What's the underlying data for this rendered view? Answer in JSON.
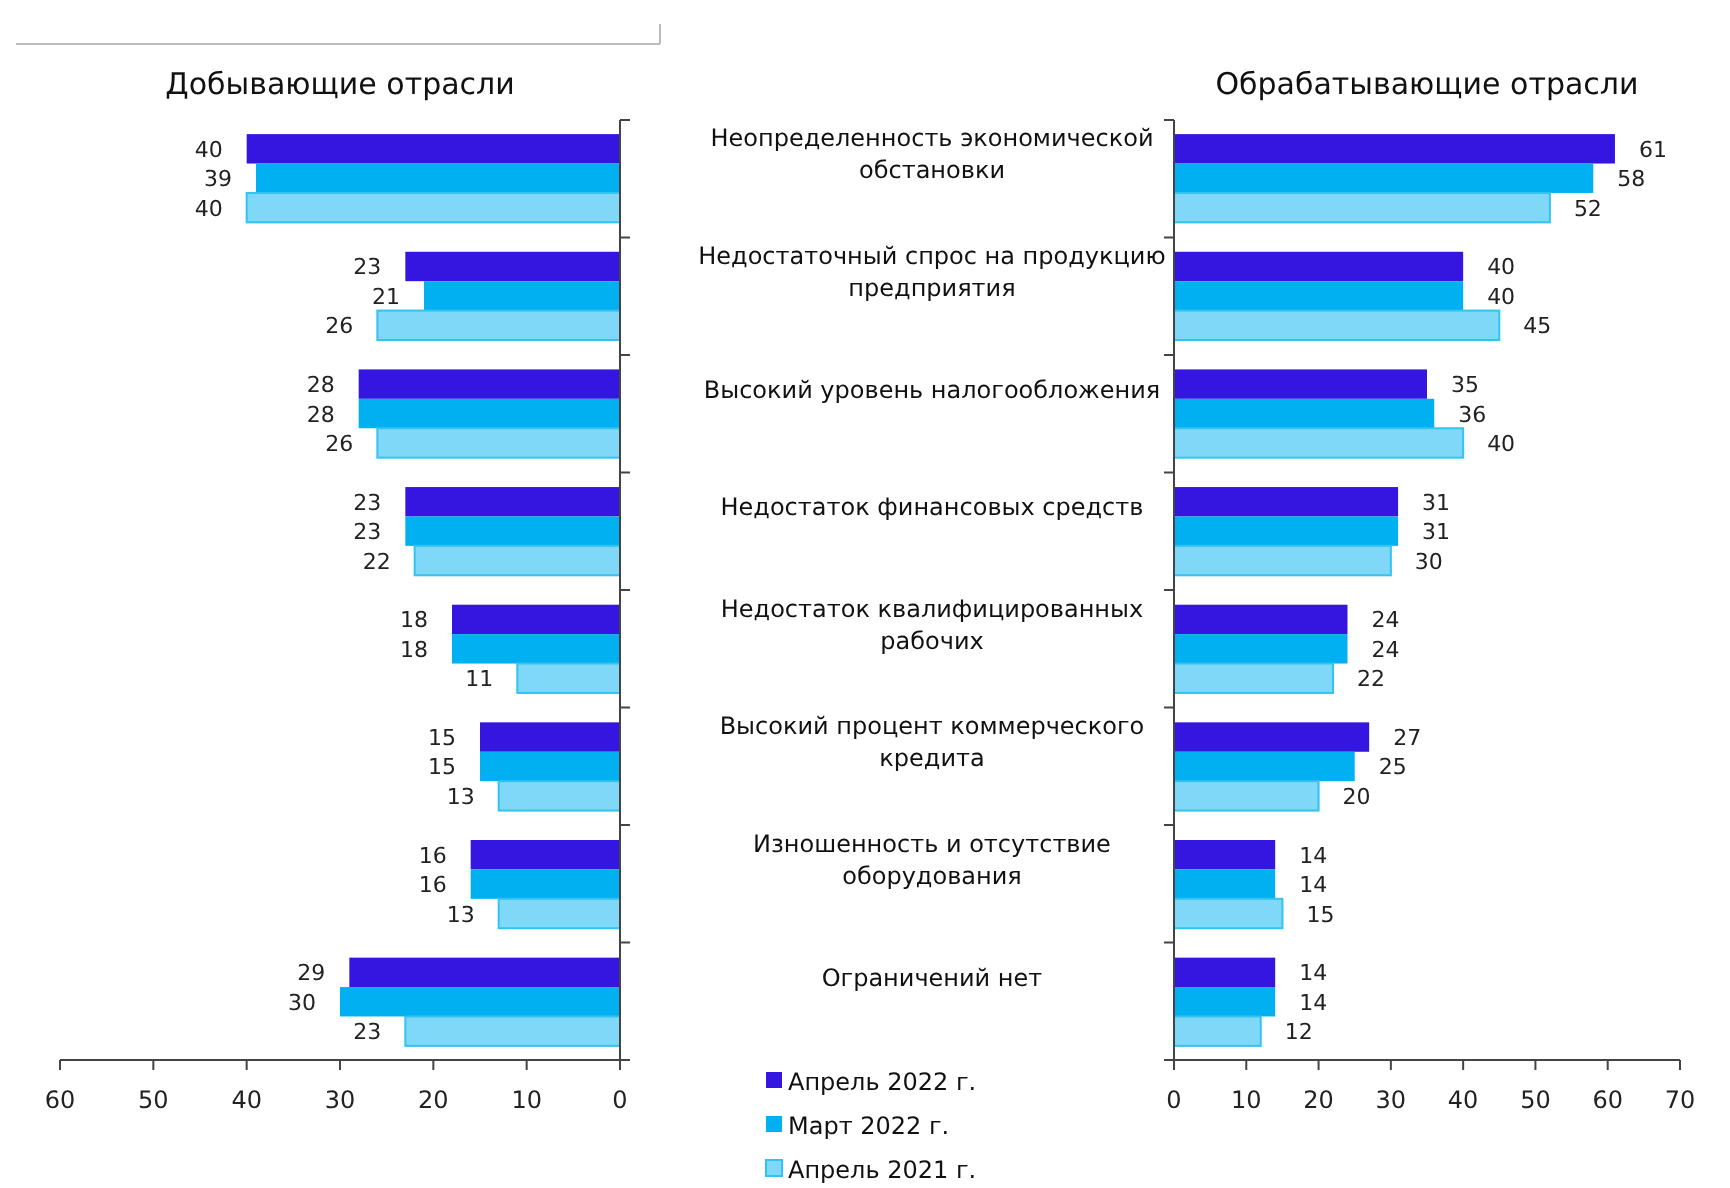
{
  "chart_data": [
    {
      "type": "bar",
      "orientation": "horizontal",
      "title": "Добывающие отрасли",
      "categories": [
        null,
        null,
        null,
        null,
        null,
        null,
        null,
        null
      ],
      "xlim": [
        60,
        0
      ],
      "xticks": [
        60,
        50,
        40,
        30,
        20,
        10,
        0
      ],
      "data_labels": true,
      "tick_labels": "x",
      "legend": false,
      "series": [
        {
          "color": "#3416e0",
          "values": [
            40,
            23,
            28,
            23,
            18,
            15,
            16,
            29
          ]
        },
        {
          "color": "#00b0f0",
          "values": [
            39,
            21,
            28,
            23,
            18,
            15,
            16,
            30
          ]
        },
        {
          "color": "#7fd8f7",
          "values": [
            40,
            26,
            26,
            22,
            11,
            13,
            13,
            23
          ]
        }
      ]
    },
    {
      "type": "bar",
      "orientation": "horizontal",
      "title": "Обрабатывающие отрасли",
      "categories": [
        "Неопределенность экономической обстановки",
        "Недостаточный спрос на продукцию предприятия",
        "Высокий уровень налогообложения",
        "Недостаток финансовых средств",
        "Недостаток квалифицированных рабочих",
        "Высокий процент коммерческого кредита",
        "Изношенность и отсутствие оборудования",
        "Ограничений нет"
      ],
      "xlim": [
        0,
        70
      ],
      "xticks": [
        0,
        10,
        20,
        30,
        40,
        50,
        60,
        70
      ],
      "data_labels": true,
      "legend": "bottom left",
      "series": [
        {
          "name": "Апрель 2022 г.",
          "color": "#3416e0",
          "values": [
            61,
            40,
            35,
            31,
            24,
            27,
            14,
            14
          ]
        },
        {
          "name": "Март 2022 г.",
          "color": "#00b0f0",
          "values": [
            58,
            40,
            36,
            31,
            24,
            25,
            14,
            14
          ]
        },
        {
          "name": "Апрель 2021 г.",
          "color": "#7fd8f7",
          "values": [
            52,
            45,
            40,
            30,
            22,
            20,
            15,
            12
          ]
        }
      ]
    }
  ]
}
